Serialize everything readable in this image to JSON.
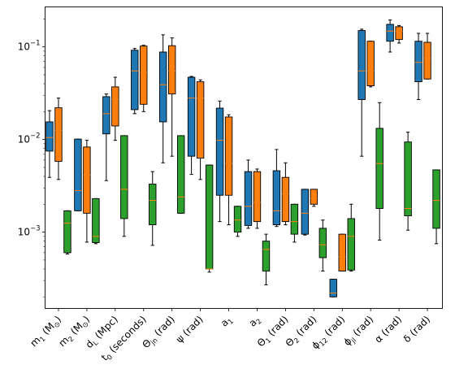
{
  "chart_data": {
    "type": "box",
    "yscale": "log",
    "ylim": [
      0.00015,
      0.27
    ],
    "grid": false,
    "legend": "none",
    "y_tick_labels": [
      {
        "value": 0.001,
        "base": "10",
        "exp": "−3"
      },
      {
        "value": 0.01,
        "base": "10",
        "exp": "−2"
      },
      {
        "value": 0.1,
        "base": "10",
        "exp": "−1"
      }
    ],
    "categories": [
      {
        "text": "m",
        "sub": "1",
        "rest": " (M",
        "sub2": "⊙",
        "end": ")"
      },
      {
        "text": "m",
        "sub": "2",
        "rest": " (M",
        "sub2": "⊙",
        "end": ")"
      },
      {
        "text": "d",
        "sub": "L",
        "rest": " (Mpc)",
        "sub2": "",
        "end": ""
      },
      {
        "text": "t",
        "sub": "0",
        "rest": " (seconds)",
        "sub2": "",
        "end": ""
      },
      {
        "text": "Θ",
        "sub": "jn",
        "rest": " (rad)",
        "sub2": "",
        "end": ""
      },
      {
        "text": "ψ",
        "sub": "",
        "rest": " (rad)",
        "sub2": "",
        "end": ""
      },
      {
        "text": "a",
        "sub": "1",
        "rest": "",
        "sub2": "",
        "end": ""
      },
      {
        "text": "a",
        "sub": "2",
        "rest": "",
        "sub2": "",
        "end": ""
      },
      {
        "text": "Θ",
        "sub": "1",
        "rest": " (rad)",
        "sub2": "",
        "end": ""
      },
      {
        "text": "Θ",
        "sub": "2",
        "rest": " (rad)",
        "sub2": "",
        "end": ""
      },
      {
        "text": "ϕ",
        "sub": "12",
        "rest": " (rad)",
        "sub2": "",
        "end": ""
      },
      {
        "text": "ϕ",
        "sub": "jl",
        "rest": " (rad)",
        "sub2": "",
        "end": ""
      },
      {
        "text": "α",
        "sub": "",
        "rest": " (rad)",
        "sub2": "",
        "end": ""
      },
      {
        "text": "δ",
        "sub": "",
        "rest": " (rad)",
        "sub2": "",
        "end": ""
      }
    ],
    "series": [
      {
        "color": "#1f77b4",
        "median_color": "#ff7f0e",
        "boxes": [
          {
            "whislo": 0.0039,
            "q1": 0.0075,
            "med": 0.0105,
            "q3": 0.0155,
            "whishi": 0.0205
          },
          {
            "whislo": 0.0017,
            "q1": 0.0017,
            "med": 0.0028,
            "q3": 0.0101,
            "whishi": 0.0101
          },
          {
            "whislo": 0.0036,
            "q1": 0.0115,
            "med": 0.019,
            "q3": 0.029,
            "whishi": 0.031
          },
          {
            "whislo": 0.019,
            "q1": 0.021,
            "med": 0.055,
            "q3": 0.092,
            "whishi": 0.096
          },
          {
            "whislo": 0.0056,
            "q1": 0.0155,
            "med": 0.039,
            "q3": 0.088,
            "whishi": 0.135
          },
          {
            "whislo": 0.0042,
            "q1": 0.0066,
            "med": 0.028,
            "q3": 0.047,
            "whishi": 0.048
          },
          {
            "whislo": 0.0013,
            "q1": 0.0025,
            "med": 0.0098,
            "q3": 0.0218,
            "whishi": 0.026
          },
          {
            "whislo": 0.0011,
            "q1": 0.00118,
            "med": 0.0019,
            "q3": 0.0045,
            "whishi": 0.006
          },
          {
            "whislo": 0.00115,
            "q1": 0.0012,
            "med": 0.0017,
            "q3": 0.0046,
            "whishi": 0.0078
          },
          {
            "whislo": 0.00093,
            "q1": 0.00095,
            "med": 0.0016,
            "q3": 0.0029,
            "whishi": 0.0029
          },
          {
            "whislo": 0.0002,
            "q1": 0.0002,
            "med": 0.00022,
            "q3": 0.00031,
            "whishi": 0.00031
          },
          {
            "whislo": 0.0066,
            "q1": 0.027,
            "med": 0.055,
            "q3": 0.15,
            "whishi": 0.155
          },
          {
            "whislo": 0.088,
            "q1": 0.115,
            "med": 0.148,
            "q3": 0.175,
            "whishi": 0.195
          },
          {
            "whislo": 0.027,
            "q1": 0.042,
            "med": 0.068,
            "q3": 0.115,
            "whishi": 0.14
          }
        ]
      },
      {
        "color": "#ff7f0e",
        "median_color": "#ff7f0e",
        "boxes": [
          {
            "whislo": 0.0037,
            "q1": 0.0058,
            "med": 0.0125,
            "q3": 0.022,
            "whishi": 0.028
          },
          {
            "whislo": 0.00078,
            "q1": 0.0016,
            "med": 0.0041,
            "q3": 0.0083,
            "whishi": 0.0098
          },
          {
            "whislo": 0.0098,
            "q1": 0.014,
            "med": 0.027,
            "q3": 0.037,
            "whishi": 0.047
          },
          {
            "whislo": 0.02,
            "q1": 0.024,
            "med": 0.053,
            "q3": 0.102,
            "whishi": 0.104
          },
          {
            "whislo": 0.0066,
            "q1": 0.031,
            "med": 0.055,
            "q3": 0.103,
            "whishi": 0.125
          },
          {
            "whislo": 0.0037,
            "q1": 0.0063,
            "med": 0.028,
            "q3": 0.042,
            "whishi": 0.044
          },
          {
            "whislo": 0.0012,
            "q1": 0.0025,
            "med": 0.0055,
            "q3": 0.0175,
            "whishi": 0.0185
          },
          {
            "whislo": 0.0011,
            "q1": 0.0013,
            "med": 0.0021,
            "q3": 0.0045,
            "whishi": 0.0048
          },
          {
            "whislo": 0.0012,
            "q1": 0.0013,
            "med": 0.0026,
            "q3": 0.0039,
            "whishi": 0.0056
          },
          {
            "whislo": 0.0019,
            "q1": 0.002,
            "med": 0.0023,
            "q3": 0.0029,
            "whishi": 0.0029
          },
          {
            "whislo": 0.00038,
            "q1": 0.00038,
            "med": 0.00054,
            "q3": 0.00095,
            "whishi": 0.00095
          },
          {
            "whislo": 0.037,
            "q1": 0.038,
            "med": 0.055,
            "q3": 0.115,
            "whishi": 0.115
          },
          {
            "whislo": 0.11,
            "q1": 0.12,
            "med": 0.148,
            "q3": 0.165,
            "whishi": 0.17
          },
          {
            "whislo": 0.045,
            "q1": 0.045,
            "med": 0.075,
            "q3": 0.112,
            "whishi": 0.14
          }
        ]
      },
      {
        "color": "#2ca02c",
        "median_color": "#ff7f0e",
        "boxes": [
          {
            "whislo": 0.00058,
            "q1": 0.0006,
            "med": 0.00125,
            "q3": 0.0017,
            "whishi": 0.0017
          },
          {
            "whislo": 0.00075,
            "q1": 0.00077,
            "med": 0.0009,
            "q3": 0.0023,
            "whishi": 0.0023
          },
          {
            "whislo": 0.0009,
            "q1": 0.0014,
            "med": 0.0029,
            "q3": 0.011,
            "whishi": 0.011
          },
          {
            "whislo": 0.00072,
            "q1": 0.0012,
            "med": 0.0022,
            "q3": 0.0033,
            "whishi": 0.0045
          },
          {
            "whislo": 0.0016,
            "q1": 0.0016,
            "med": 0.0024,
            "q3": 0.011,
            "whishi": 0.011
          },
          {
            "whislo": 0.00037,
            "q1": 0.0004,
            "med": 0.0004,
            "q3": 0.0053,
            "whishi": 0.0053
          },
          {
            "whislo": 0.0009,
            "q1": 0.001,
            "med": 0.00135,
            "q3": 0.0019,
            "whishi": 0.0019
          },
          {
            "whislo": 0.00027,
            "q1": 0.00038,
            "med": 0.00065,
            "q3": 0.0008,
            "whishi": 0.00095
          },
          {
            "whislo": 0.00078,
            "q1": 0.00095,
            "med": 0.0013,
            "q3": 0.002,
            "whishi": 0.002
          },
          {
            "whislo": 0.00038,
            "q1": 0.00053,
            "med": 0.00073,
            "q3": 0.0011,
            "whishi": 0.00135
          },
          {
            "whislo": 0.00038,
            "q1": 0.00039,
            "med": 0.0009,
            "q3": 0.0014,
            "whishi": 0.002
          },
          {
            "whislo": 0.00082,
            "q1": 0.0018,
            "med": 0.0055,
            "q3": 0.0132,
            "whishi": 0.025
          },
          {
            "whislo": 0.00105,
            "q1": 0.0015,
            "med": 0.0018,
            "q3": 0.0094,
            "whishi": 0.012
          },
          {
            "whislo": 0.00075,
            "q1": 0.0011,
            "med": 0.0022,
            "q3": 0.0047,
            "whishi": 0.0047
          }
        ]
      }
    ]
  }
}
